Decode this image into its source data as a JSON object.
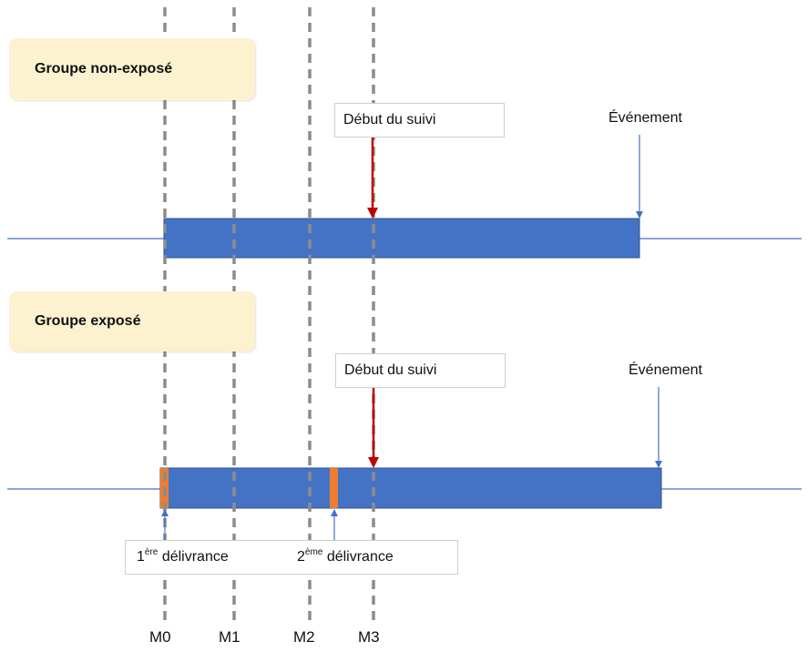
{
  "groups": {
    "non_exposed": {
      "title": "Groupe non-exposé",
      "follow_up_label": "Début du suivi",
      "event_label": "Événement"
    },
    "exposed": {
      "title": "Groupe exposé",
      "follow_up_label": "Début du suivi",
      "event_label": "Événement",
      "deliveries": [
        {
          "number": "1",
          "suffix": "ère",
          "label": "délivrance"
        },
        {
          "number": "2",
          "suffix": "ème",
          "label": "délivrance"
        }
      ]
    }
  },
  "timepoints": [
    "M0",
    "M1",
    "M2",
    "M3"
  ],
  "colors": {
    "bar": "#4472c4",
    "timeline": "#4472c4",
    "follow_up_arrow": "#c00000",
    "event_arrow": "#4472c4",
    "delivery_marker": "#ed7d31",
    "dashed_line": "#8c8c8c",
    "group_box": "#fdf2d0"
  }
}
